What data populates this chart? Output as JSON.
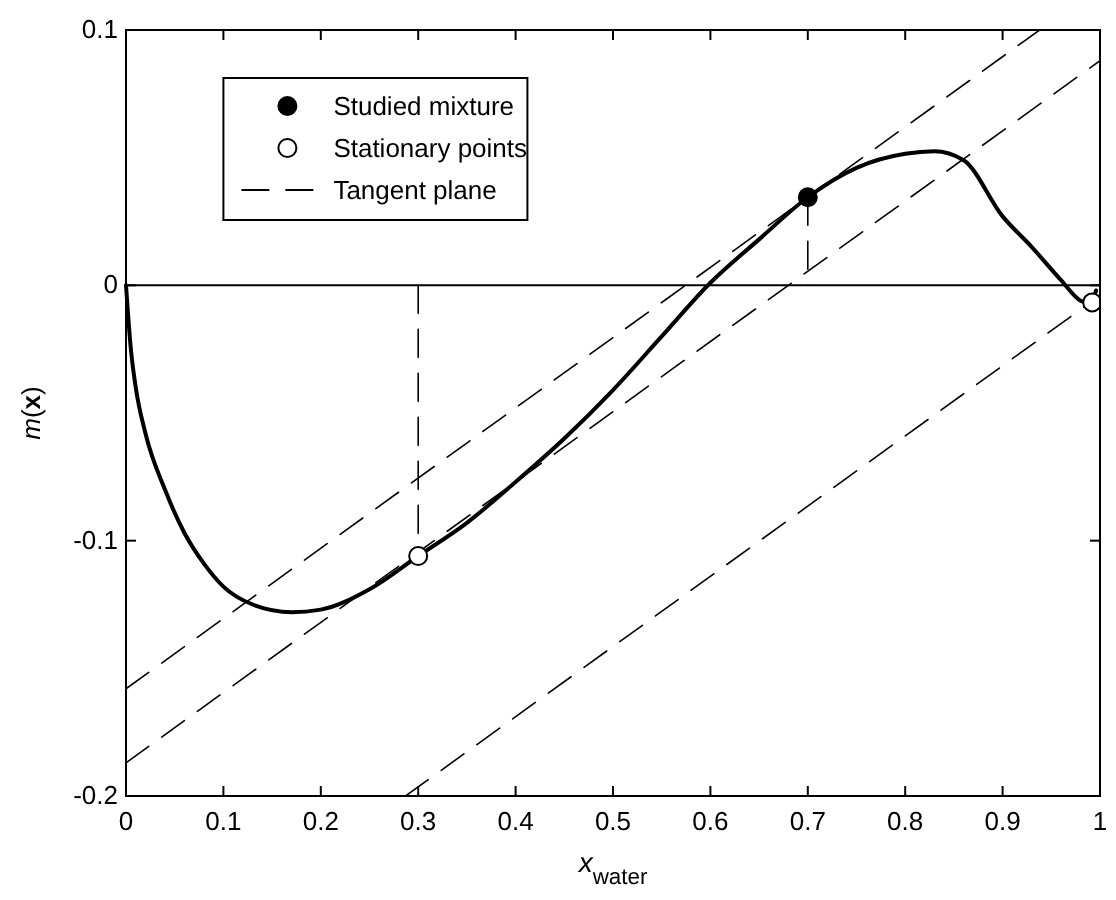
{
  "chart_data": {
    "type": "line",
    "xlabel": "x$_{water}$",
    "ylabel": "m(x)",
    "xlim": [
      0,
      1
    ],
    "ylim": [
      -0.2,
      0.1
    ],
    "xticks": [
      0,
      0.1,
      0.2,
      0.3,
      0.4,
      0.5,
      0.6,
      0.7,
      0.8,
      0.9,
      1
    ],
    "yticks": [
      -0.2,
      -0.1,
      0,
      0.1
    ],
    "legend": "top left",
    "grid": false,
    "ref_lines": [
      {
        "axis": "y",
        "value": 0,
        "color": "#000000",
        "line_style": "solid"
      }
    ],
    "series": [
      {
        "color": "#000000",
        "line_style": "solid",
        "x": [
          0,
          0.005,
          0.01,
          0.02,
          0.04,
          0.06,
          0.08,
          0.1,
          0.13,
          0.17,
          0.2,
          0.25,
          0.3,
          0.35,
          0.4,
          0.45,
          0.5,
          0.55,
          0.6,
          0.65,
          0.7,
          0.75,
          0.8,
          0.83,
          0.86,
          0.9,
          0.93,
          0.96,
          0.98,
          0.99,
          0.996
        ],
        "values": [
          0,
          -0.025,
          -0.04,
          -0.058,
          -0.08,
          -0.097,
          -0.109,
          -0.118,
          -0.125,
          -0.128,
          -0.127,
          -0.119,
          -0.106,
          -0.093,
          -0.077,
          -0.06,
          -0.041,
          -0.02,
          0.001,
          0.018,
          0.0345,
          0.046,
          0.0515,
          0.0525,
          0.049,
          0.027,
          0.015,
          0.002,
          -0.006,
          -0.007,
          -0.002
        ]
      },
      {
        "color": "#000000",
        "line_style": "dashed",
        "x": [
          0.3,
          0.3
        ],
        "values": [
          0,
          -0.106
        ]
      },
      {
        "type": "line",
        "color": "#000000",
        "line_style": "dashed",
        "x": [
          0.7,
          0.7
        ],
        "values": [
          0.0345,
          0
        ]
      },
      {
        "type": "line",
        "name": "Tangent plane",
        "color": "#000000",
        "line_style": "dashed",
        "x": [
          0,
          0.938
        ],
        "values": [
          -0.158,
          0.1
        ]
      },
      {
        "type": "line",
        "color": "#000000",
        "line_style": "dashed",
        "x": [
          0,
          1
        ],
        "values": [
          -0.187,
          0.088
        ]
      },
      {
        "type": "line",
        "color": "#000000",
        "line_style": "dashed",
        "x": [
          0.287,
          1
        ],
        "values": [
          -0.2,
          -0.004
        ]
      },
      {
        "type": "scatter",
        "name": "Studied mixture",
        "color": "#000000",
        "marker": "circle",
        "x": [
          0.7
        ],
        "values": [
          0.0345
        ]
      },
      {
        "type": "scatter",
        "name": "Stationary points",
        "color": "#ffffff",
        "marker": "circle",
        "x": [
          0.3,
          0.992
        ],
        "values": [
          -0.106,
          -0.0067
        ]
      }
    ]
  }
}
